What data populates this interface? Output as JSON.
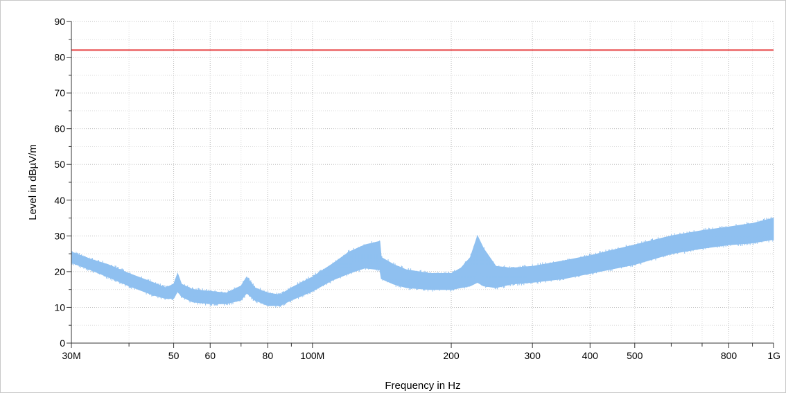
{
  "chart_data": {
    "type": "line",
    "xlabel": "Frequency in Hz",
    "ylabel": "Level in dBµV/m",
    "x_scale": "log",
    "xlim": [
      30000000,
      1000000000
    ],
    "ylim": [
      0,
      90
    ],
    "grid": true,
    "x_ticks": [
      {
        "value": 30000000,
        "label": "30M"
      },
      {
        "value": 50000000,
        "label": "50"
      },
      {
        "value": 60000000,
        "label": "60"
      },
      {
        "value": 80000000,
        "label": "80"
      },
      {
        "value": 100000000,
        "label": "100M"
      },
      {
        "value": 200000000,
        "label": "200"
      },
      {
        "value": 300000000,
        "label": "300"
      },
      {
        "value": 400000000,
        "label": "400"
      },
      {
        "value": 500000000,
        "label": "500"
      },
      {
        "value": 800000000,
        "label": "800"
      },
      {
        "value": 1000000000,
        "label": "1G"
      }
    ],
    "y_ticks": [
      {
        "value": 0,
        "label": "0"
      },
      {
        "value": 10,
        "label": "10"
      },
      {
        "value": 20,
        "label": "20"
      },
      {
        "value": 30,
        "label": "30"
      },
      {
        "value": 40,
        "label": "40"
      },
      {
        "value": 50,
        "label": "50"
      },
      {
        "value": 60,
        "label": "60"
      },
      {
        "value": 70,
        "label": "70"
      },
      {
        "value": 80,
        "label": "80"
      },
      {
        "value": 90,
        "label": "90"
      }
    ],
    "series": [
      {
        "color": "#e8494b",
        "style": "line",
        "x": [
          30000000,
          1000000000
        ],
        "y": [
          82,
          82
        ]
      },
      {
        "color": "#8fc0f0",
        "style": "band",
        "x": [
          30000000,
          33000000,
          36000000,
          40000000,
          45000000,
          48000000,
          50000000,
          51000000,
          52000000,
          55000000,
          60000000,
          65000000,
          70000000,
          72000000,
          75000000,
          80000000,
          85000000,
          90000000,
          100000000,
          110000000,
          120000000,
          130000000,
          140000000,
          141000000,
          150000000,
          160000000,
          180000000,
          200000000,
          210000000,
          220000000,
          228000000,
          235000000,
          250000000,
          270000000,
          300000000,
          350000000,
          400000000,
          500000000,
          600000000,
          700000000,
          800000000,
          900000000,
          1000000000
        ],
        "y_low": [
          22.5,
          20.5,
          18.5,
          16,
          13.5,
          12.5,
          12.5,
          14.5,
          13,
          11.5,
          11,
          11,
          12,
          14,
          12,
          10.5,
          10.5,
          12,
          14.5,
          17.5,
          19.5,
          21,
          20.5,
          18,
          16.5,
          15.5,
          15,
          15,
          15.5,
          16,
          17,
          16,
          15.5,
          16.5,
          17,
          18,
          19.5,
          22,
          25,
          26.5,
          27.5,
          28,
          29
        ],
        "y_high": [
          25.5,
          23.5,
          22,
          19.5,
          17,
          15.5,
          16.5,
          19.5,
          16.5,
          15,
          14.5,
          14,
          16,
          18.5,
          15.5,
          14,
          13.5,
          15.5,
          18.5,
          22,
          25.5,
          27.5,
          28.5,
          24,
          22,
          20.5,
          19.5,
          19.5,
          21,
          24,
          30,
          26.5,
          21.5,
          21,
          21.5,
          23,
          24.5,
          27.5,
          30,
          31.5,
          32.5,
          33.5,
          35
        ]
      }
    ]
  }
}
